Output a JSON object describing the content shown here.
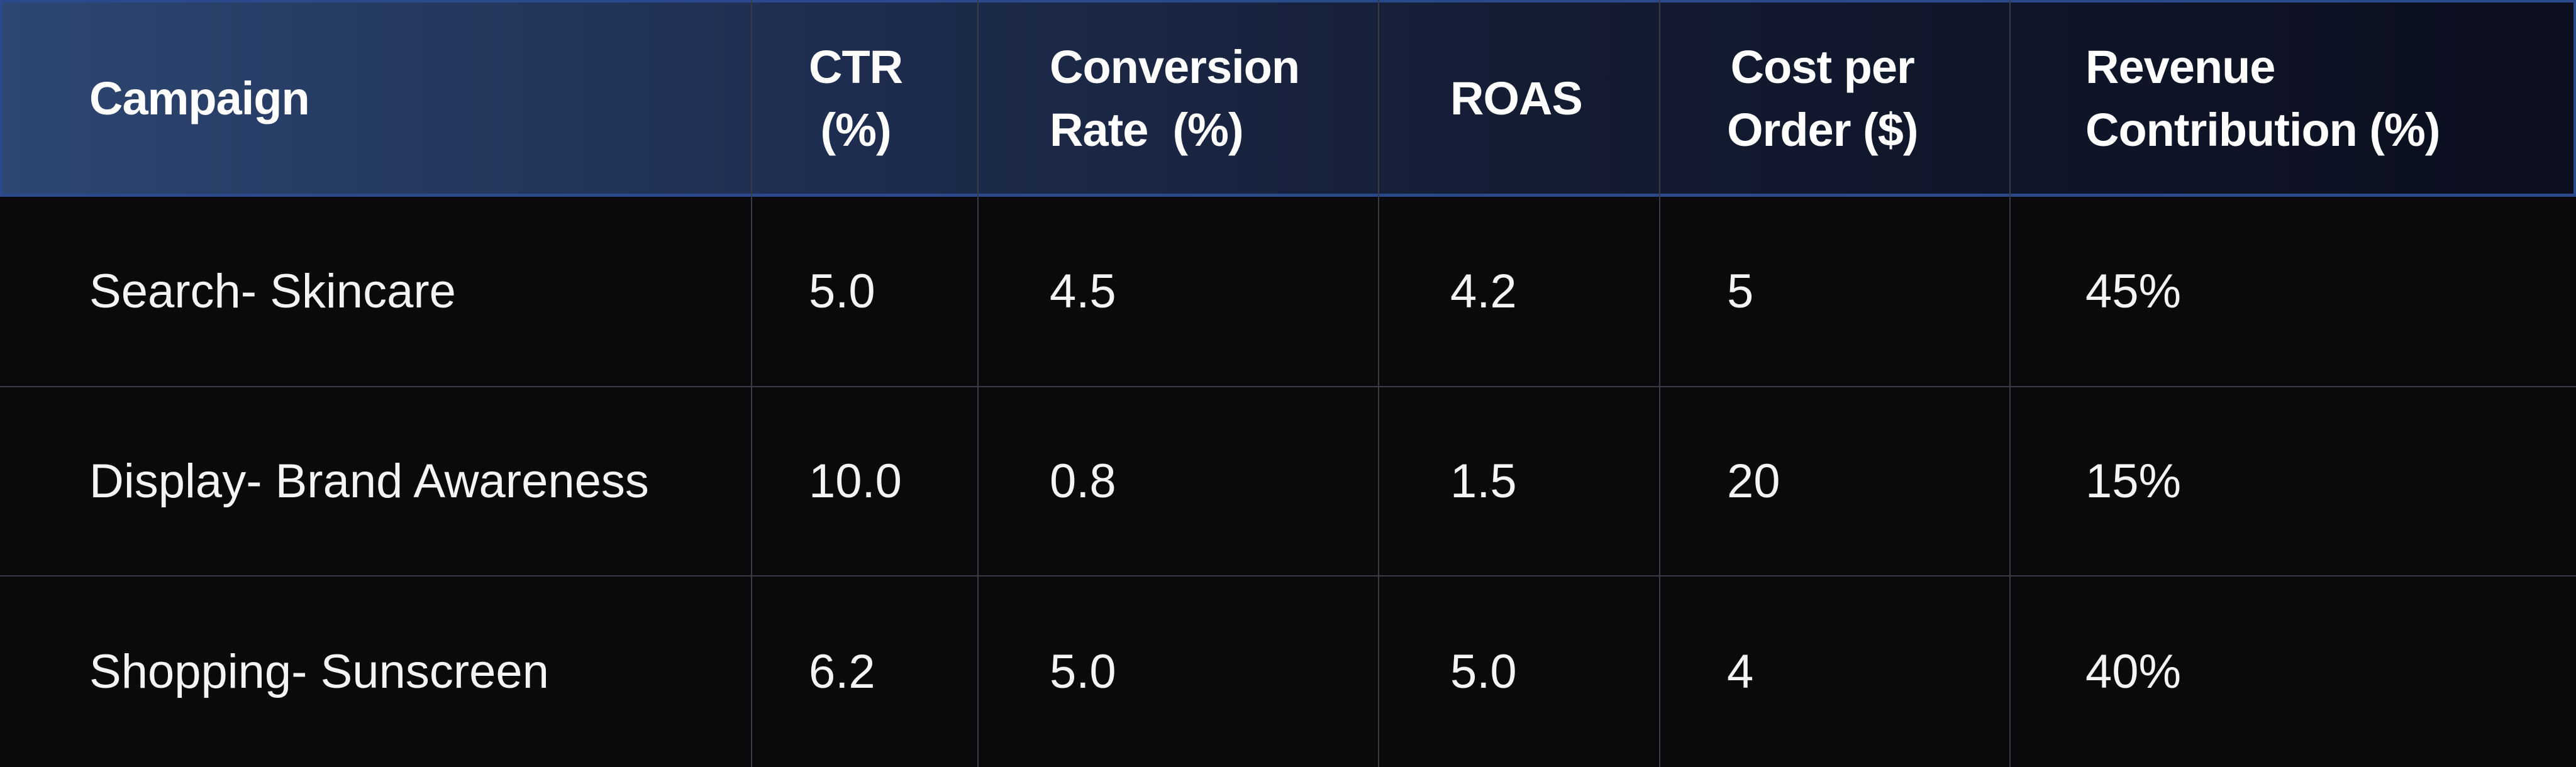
{
  "table": {
    "columns": [
      {
        "id": "campaign",
        "label_lines": [
          "Campaign"
        ]
      },
      {
        "id": "ctr",
        "label_lines": [
          "CTR",
          "(%)"
        ]
      },
      {
        "id": "conversion_rate",
        "label_lines": [
          "Conversion",
          "Rate  (%)"
        ]
      },
      {
        "id": "roas",
        "label_lines": [
          "ROAS"
        ]
      },
      {
        "id": "cost_per_order",
        "label_lines": [
          "Cost per",
          "Order ($)"
        ]
      },
      {
        "id": "revenue_contribution",
        "label_lines": [
          "Revenue",
          "Contribution (%)"
        ]
      }
    ],
    "rows": [
      [
        "Search- Skincare",
        "5.0",
        "4.5",
        "4.2",
        "5",
        "45%"
      ],
      [
        "Display- Brand Awareness",
        "10.0",
        "0.8",
        "1.5",
        "20",
        "15%"
      ],
      [
        "Shopping- Sunscreen",
        "6.2",
        "5.0",
        "5.0",
        "4",
        "40%"
      ]
    ]
  },
  "colors": {
    "header_gradient_start": "#2d4672",
    "header_gradient_end": "#0b0f1f",
    "header_border": "#2a4a8c",
    "body_background": "#0a0a0c",
    "grid_line": "#3a3d46",
    "text": "#ffffff"
  }
}
